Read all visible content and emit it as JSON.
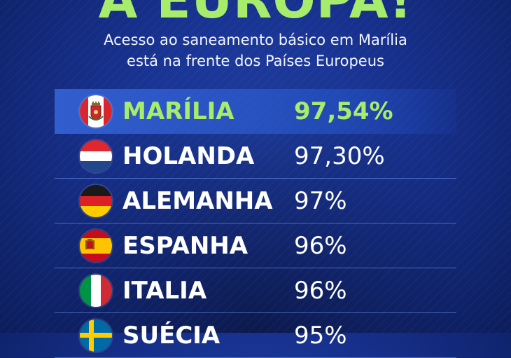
{
  "headline": "A EUROPA!",
  "subtitle": {
    "line1": "Acesso ao saneamento básico em Marília",
    "line2": "está na frente dos Países Europeus"
  },
  "colors": {
    "accent_green": "#a8ec6c",
    "background_blue": "#162f8a",
    "highlight_row": "#3c6ee6"
  },
  "ranking": [
    {
      "country": "MARÍLIA",
      "value": "97,54%",
      "flag_icon": "marilia-flag-icon",
      "highlighted": true
    },
    {
      "country": "HOLANDA",
      "value": "97,30%",
      "flag_icon": "netherlands-flag-icon",
      "highlighted": false
    },
    {
      "country": "ALEMANHA",
      "value": "97%",
      "flag_icon": "germany-flag-icon",
      "highlighted": false
    },
    {
      "country": "ESPANHA",
      "value": "96%",
      "flag_icon": "spain-flag-icon",
      "highlighted": false
    },
    {
      "country": "ITALIA",
      "value": "96%",
      "flag_icon": "italy-flag-icon",
      "highlighted": false
    },
    {
      "country": "SUÉCIA",
      "value": "95%",
      "flag_icon": "sweden-flag-icon",
      "highlighted": false
    }
  ]
}
